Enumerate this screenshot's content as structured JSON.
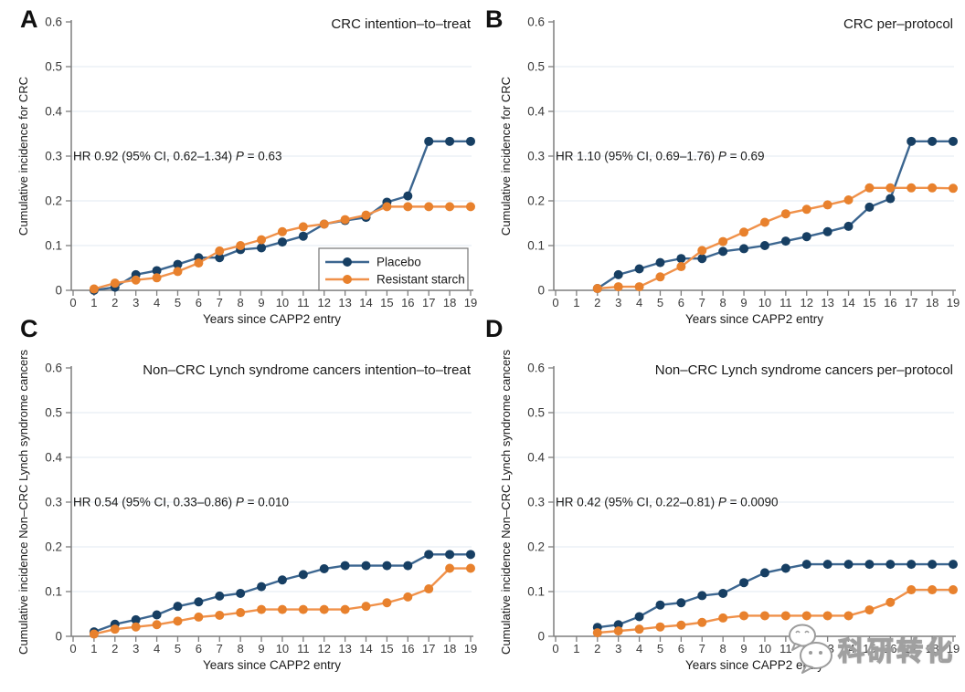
{
  "figure_title": "CAPP2 cumulative incidence figure",
  "colors": {
    "placebo_line": "#3C6690",
    "placebo_marker": "#173F63",
    "starch_line": "#F0914A",
    "starch_marker": "#E8812D",
    "gridline": "#E6EEF3",
    "axis": "#7E7E7E",
    "tick_text": "#3A3A3A",
    "title_text": "#1A1A1A",
    "legend_border": "#767676"
  },
  "watermark": {
    "text": "科研转化",
    "icon": "wechat-chat-bubbles-icon"
  },
  "chart_data": [
    {
      "panel": "A",
      "type": "line",
      "title": "CRC intention–to–treat",
      "xlabel": "Years since CAPP2 entry",
      "ylabel": "Cumulative incidence for CRC",
      "xlim": [
        0,
        19
      ],
      "ylim": [
        0,
        0.6
      ],
      "xticks": [
        0,
        1,
        2,
        3,
        4,
        5,
        6,
        7,
        8,
        9,
        10,
        11,
        12,
        13,
        14,
        15,
        16,
        17,
        18,
        19
      ],
      "yticks": [
        0,
        0.1,
        0.2,
        0.3,
        0.4,
        0.5,
        0.6
      ],
      "grid": "horizontal",
      "annotation": {
        "text": "HR 0.92 (95% CI, 0.62–1.34) P = 0.63",
        "prefix": "HR 0.92 (95% CI, 0.62–1.34) ",
        "italic": "P",
        "suffix": " = 0.63",
        "at_y": 0.3
      },
      "legend": {
        "visible": true,
        "position": "bottom-right"
      },
      "series": [
        {
          "name": "Placebo",
          "color_key": "placebo",
          "x": [
            1,
            2,
            3,
            4,
            5,
            6,
            7,
            8,
            9,
            10,
            11,
            12,
            13,
            14,
            15,
            16,
            17,
            18,
            19
          ],
          "y": [
            0.0,
            0.007,
            0.035,
            0.044,
            0.058,
            0.073,
            0.073,
            0.091,
            0.095,
            0.108,
            0.121,
            0.148,
            0.156,
            0.163,
            0.197,
            0.211,
            0.333,
            0.333,
            0.333
          ]
        },
        {
          "name": "Resistant starch",
          "color_key": "starch",
          "x": [
            1,
            2,
            3,
            4,
            5,
            6,
            7,
            8,
            9,
            10,
            11,
            12,
            13,
            14,
            15,
            16,
            17,
            18,
            19
          ],
          "y": [
            0.003,
            0.016,
            0.023,
            0.028,
            0.042,
            0.061,
            0.088,
            0.1,
            0.113,
            0.131,
            0.142,
            0.148,
            0.158,
            0.168,
            0.187,
            0.187,
            0.187,
            0.187,
            0.187
          ]
        }
      ]
    },
    {
      "panel": "B",
      "type": "line",
      "title": "CRC per–protocol",
      "xlabel": "Years since CAPP2 entry",
      "ylabel": "Cumulative incidence for CRC",
      "xlim": [
        0,
        19
      ],
      "ylim": [
        0,
        0.6
      ],
      "xticks": [
        0,
        1,
        2,
        3,
        4,
        5,
        6,
        7,
        8,
        9,
        10,
        11,
        12,
        13,
        14,
        15,
        16,
        17,
        18,
        19
      ],
      "yticks": [
        0,
        0.1,
        0.2,
        0.3,
        0.4,
        0.5,
        0.6
      ],
      "grid": "horizontal",
      "annotation": {
        "text": "HR 1.10 (95% CI, 0.69–1.76) P = 0.69",
        "prefix": "HR 1.10 (95% CI, 0.69–1.76) ",
        "italic": "P",
        "suffix": " = 0.69",
        "at_y": 0.3
      },
      "legend": {
        "visible": false
      },
      "series": [
        {
          "name": "Placebo",
          "color_key": "placebo",
          "x": [
            2,
            3,
            4,
            5,
            6,
            7,
            8,
            9,
            10,
            11,
            12,
            13,
            14,
            15,
            16,
            17,
            18,
            19
          ],
          "y": [
            0.004,
            0.035,
            0.048,
            0.062,
            0.071,
            0.071,
            0.087,
            0.093,
            0.1,
            0.11,
            0.12,
            0.131,
            0.143,
            0.186,
            0.205,
            0.333,
            0.333,
            0.333
          ]
        },
        {
          "name": "Resistant starch",
          "color_key": "starch",
          "x": [
            2,
            3,
            4,
            5,
            6,
            7,
            8,
            9,
            10,
            11,
            12,
            13,
            14,
            15,
            16,
            17,
            18,
            19
          ],
          "y": [
            0.004,
            0.008,
            0.008,
            0.03,
            0.053,
            0.089,
            0.109,
            0.13,
            0.152,
            0.171,
            0.181,
            0.191,
            0.202,
            0.229,
            0.229,
            0.229,
            0.229,
            0.228
          ]
        }
      ]
    },
    {
      "panel": "C",
      "type": "line",
      "title": "Non–CRC Lynch syndrome cancers intention–to–treat",
      "xlabel": "Years since CAPP2 entry",
      "ylabel": "Cumulative incidence Non–CRC Lynch syndrome cancers",
      "xlim": [
        0,
        19
      ],
      "ylim": [
        0,
        0.6
      ],
      "xticks": [
        0,
        1,
        2,
        3,
        4,
        5,
        6,
        7,
        8,
        9,
        10,
        11,
        12,
        13,
        14,
        15,
        16,
        17,
        18,
        19
      ],
      "yticks": [
        0,
        0.1,
        0.2,
        0.3,
        0.4,
        0.5,
        0.6
      ],
      "grid": "horizontal",
      "annotation": {
        "text": "HR 0.54 (95% CI, 0.33–0.86) P = 0.010",
        "prefix": "HR 0.54 (95% CI, 0.33–0.86) ",
        "italic": "P",
        "suffix": " = 0.010",
        "at_y": 0.3
      },
      "legend": {
        "visible": false
      },
      "series": [
        {
          "name": "Placebo",
          "color_key": "placebo",
          "x": [
            1,
            2,
            3,
            4,
            5,
            6,
            7,
            8,
            9,
            10,
            11,
            12,
            13,
            14,
            15,
            16,
            17,
            18,
            19
          ],
          "y": [
            0.01,
            0.027,
            0.037,
            0.048,
            0.067,
            0.077,
            0.09,
            0.096,
            0.111,
            0.126,
            0.138,
            0.151,
            0.158,
            0.158,
            0.158,
            0.158,
            0.183,
            0.183,
            0.183
          ]
        },
        {
          "name": "Resistant starch",
          "color_key": "starch",
          "x": [
            1,
            2,
            3,
            4,
            5,
            6,
            7,
            8,
            9,
            10,
            11,
            12,
            13,
            14,
            15,
            16,
            17,
            18,
            19
          ],
          "y": [
            0.005,
            0.016,
            0.021,
            0.026,
            0.034,
            0.043,
            0.047,
            0.053,
            0.06,
            0.06,
            0.06,
            0.06,
            0.06,
            0.067,
            0.075,
            0.088,
            0.106,
            0.152,
            0.152
          ]
        }
      ]
    },
    {
      "panel": "D",
      "type": "line",
      "title": "Non–CRC Lynch syndrome cancers per–protocol",
      "xlabel": "Years since CAPP2 entry",
      "ylabel": "Cumulative incidence Non–CRC Lynch syndrome cancers",
      "xlim": [
        0,
        19
      ],
      "ylim": [
        0,
        0.6
      ],
      "xticks": [
        0,
        1,
        2,
        3,
        4,
        5,
        6,
        7,
        8,
        9,
        10,
        11,
        12,
        13,
        14,
        15,
        16,
        17,
        18,
        19
      ],
      "yticks": [
        0,
        0.1,
        0.2,
        0.3,
        0.4,
        0.5,
        0.6
      ],
      "grid": "horizontal",
      "annotation": {
        "text": "HR 0.42 (95% CI, 0.22–0.81) P = 0.0090",
        "prefix": "HR 0.42 (95% CI, 0.22–0.81) ",
        "italic": "P",
        "suffix": " = 0.0090",
        "at_y": 0.3
      },
      "legend": {
        "visible": false
      },
      "series": [
        {
          "name": "Placebo",
          "color_key": "placebo",
          "x": [
            2,
            3,
            4,
            5,
            6,
            7,
            8,
            9,
            10,
            11,
            12,
            13,
            14,
            15,
            16,
            17,
            18,
            19
          ],
          "y": [
            0.02,
            0.026,
            0.044,
            0.07,
            0.075,
            0.091,
            0.096,
            0.12,
            0.142,
            0.152,
            0.161,
            0.161,
            0.161,
            0.161,
            0.161,
            0.161,
            0.161,
            0.161
          ]
        },
        {
          "name": "Resistant starch",
          "color_key": "starch",
          "x": [
            2,
            3,
            4,
            5,
            6,
            7,
            8,
            9,
            10,
            11,
            12,
            13,
            14,
            15,
            16,
            17,
            18,
            19
          ],
          "y": [
            0.008,
            0.012,
            0.016,
            0.021,
            0.025,
            0.031,
            0.041,
            0.046,
            0.046,
            0.046,
            0.046,
            0.046,
            0.046,
            0.059,
            0.076,
            0.104,
            0.104,
            0.104
          ]
        }
      ]
    }
  ]
}
